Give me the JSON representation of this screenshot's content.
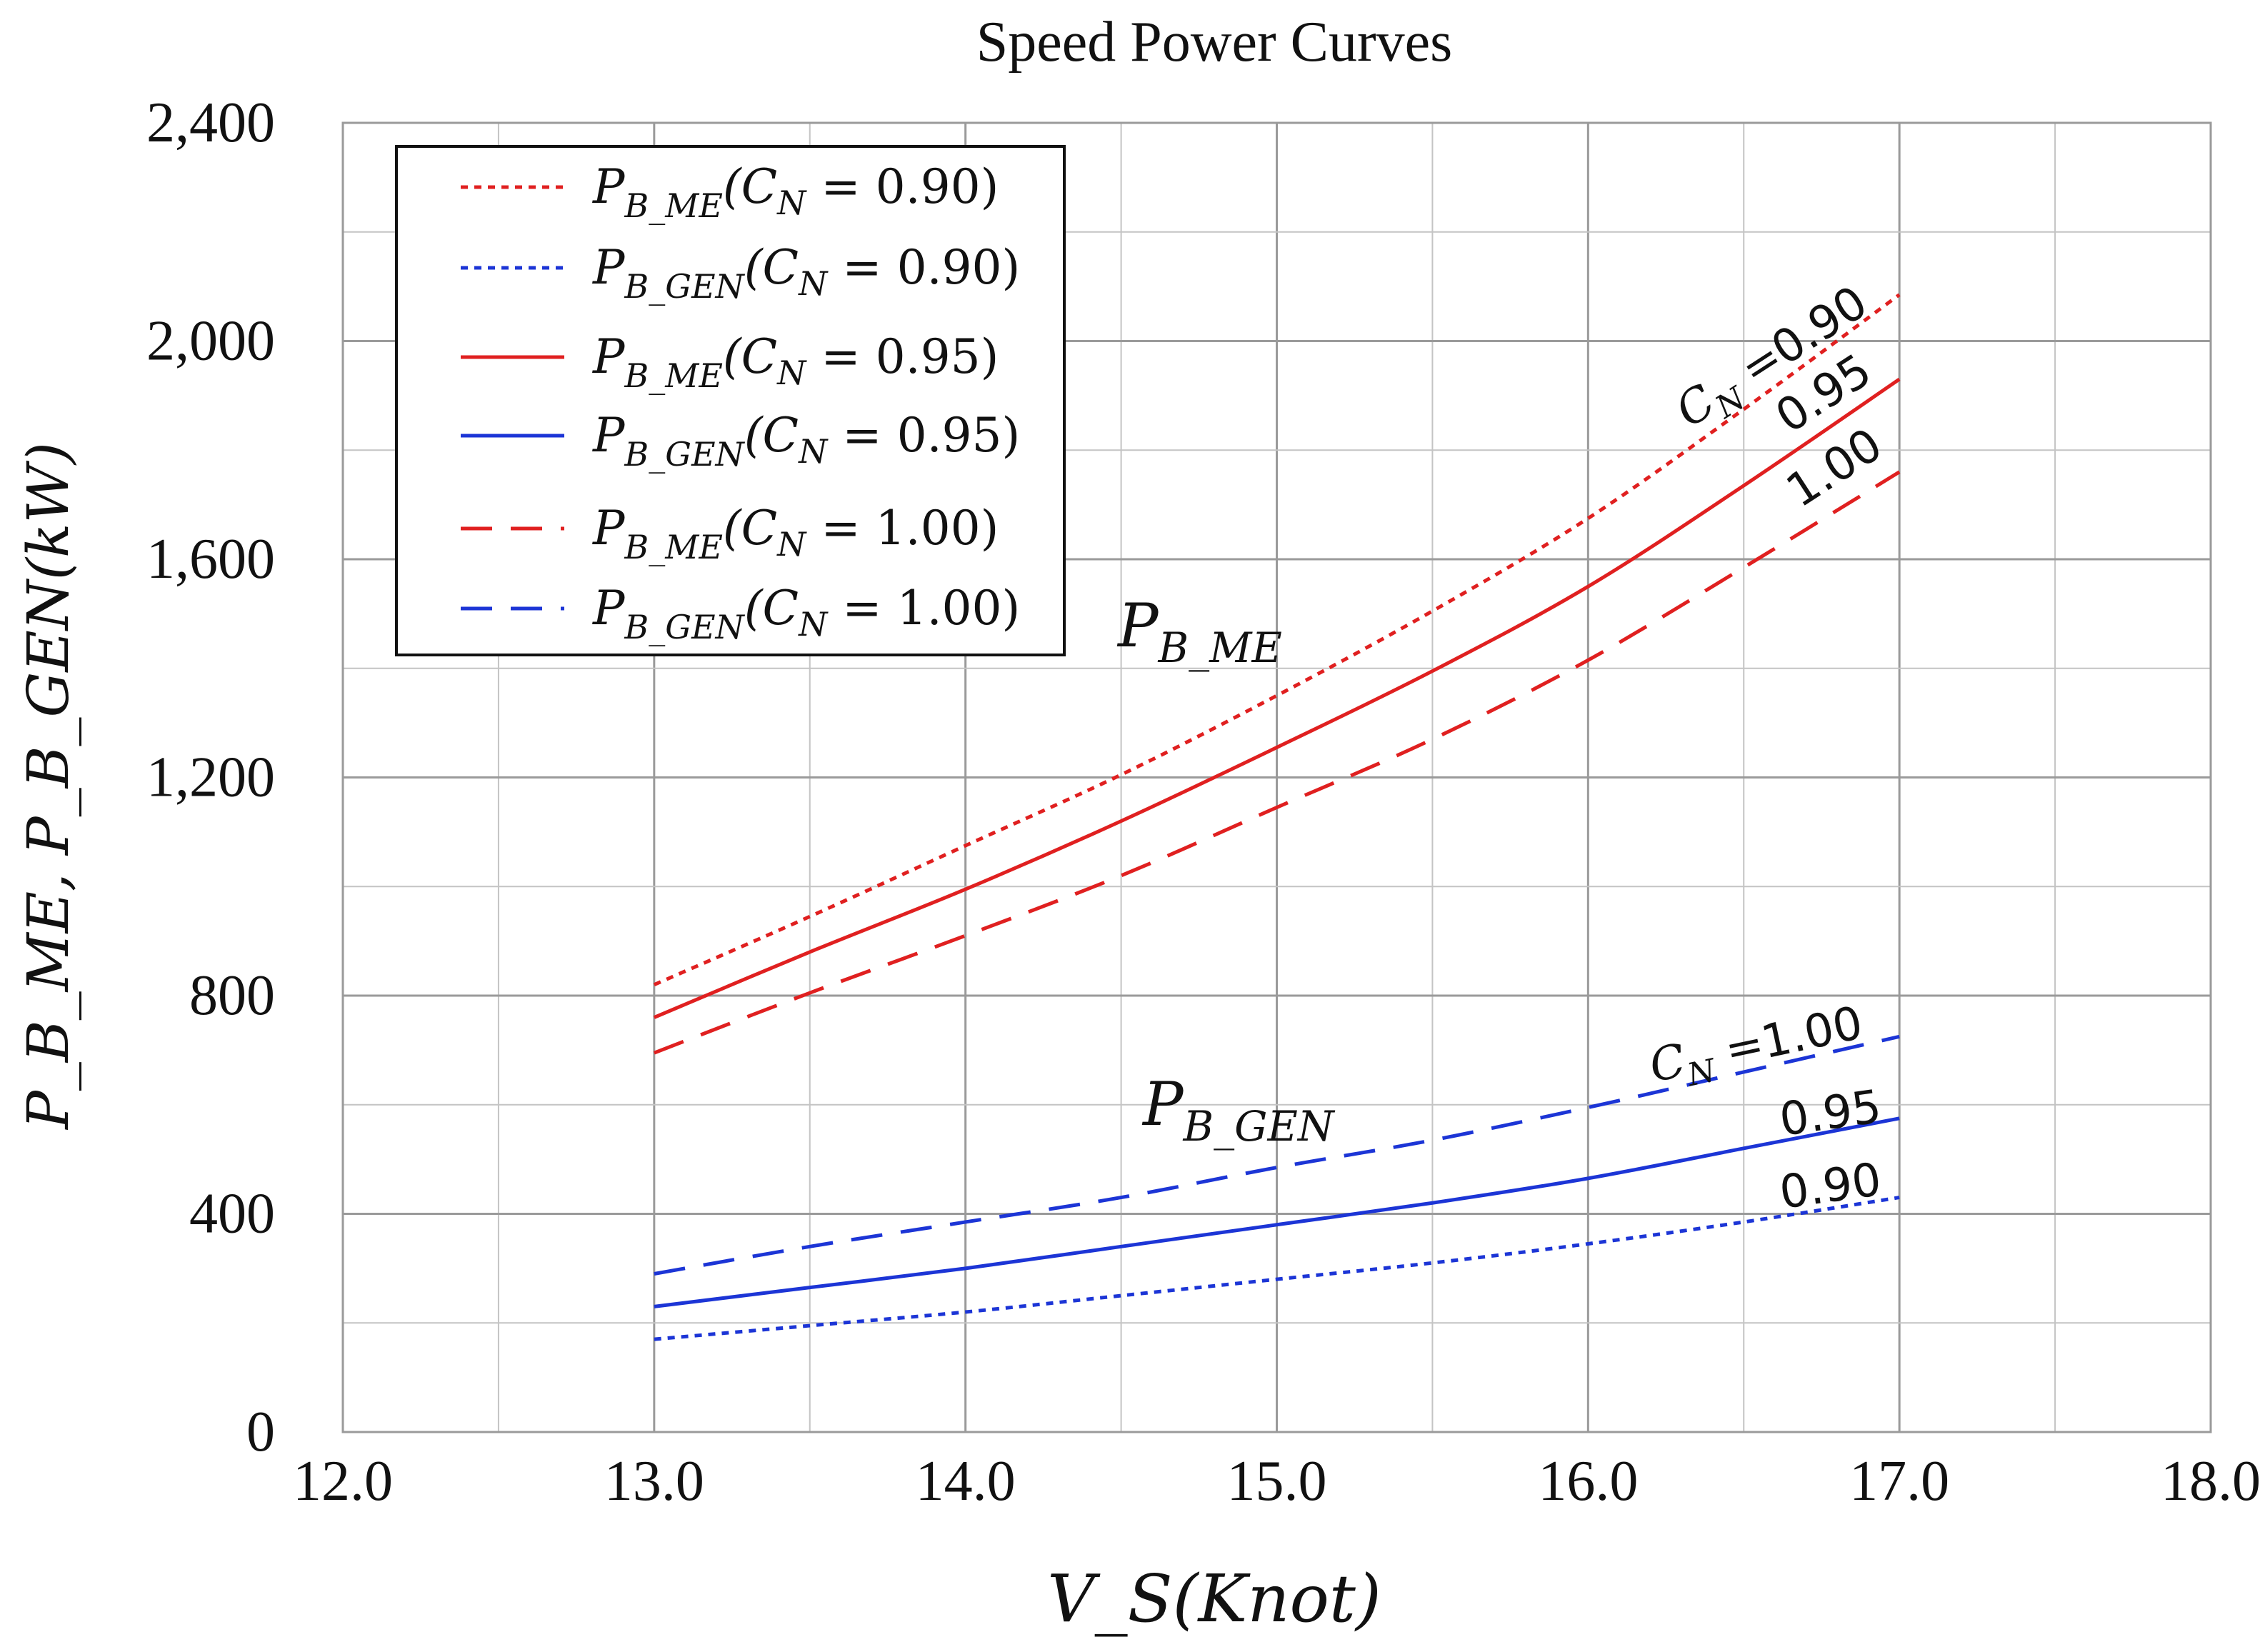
{
  "chart_data": {
    "type": "line",
    "title": "Speed Power Curves",
    "xlabel": "V_S(Knot)",
    "ylabel": "P_B_ME, P_B_GEN(kW)",
    "xlim": [
      12.0,
      18.0
    ],
    "ylim": [
      0,
      2400
    ],
    "xticks": [
      12.0,
      13.0,
      14.0,
      15.0,
      16.0,
      17.0,
      18.0
    ],
    "xtick_labels": [
      "12.0",
      "13.0",
      "14.0",
      "15.0",
      "16.0",
      "17.0",
      "18.0"
    ],
    "yticks": [
      0,
      400,
      800,
      1200,
      1600,
      2000,
      2400
    ],
    "ytick_labels": [
      "0",
      "400",
      "800",
      "1,200",
      "1,600",
      "2,000",
      "2,400"
    ],
    "grid": true,
    "minor_grid": {
      "x_step": 0.5,
      "y_step": 200
    },
    "legend_position": "top-left",
    "x": [
      13.0,
      13.5,
      14.0,
      14.5,
      15.0,
      15.5,
      16.0,
      16.5,
      17.0
    ],
    "series": [
      {
        "name": "P_B_ME(C_N = 0.90)",
        "color": "#e02020",
        "style": "dotted",
        "values": [
          820,
          945,
          1075,
          1205,
          1350,
          1505,
          1675,
          1875,
          2085
        ]
      },
      {
        "name": "P_B_GEN(C_N = 0.90)",
        "color": "#1c35d6",
        "style": "dotted",
        "values": [
          170,
          195,
          220,
          250,
          280,
          310,
          345,
          385,
          430
        ]
      },
      {
        "name": "P_B_ME(C_N = 0.95)",
        "color": "#e02020",
        "style": "solid",
        "values": [
          760,
          880,
          995,
          1120,
          1255,
          1395,
          1550,
          1735,
          1930
        ]
      },
      {
        "name": "P_B_GEN(C_N = 0.95)",
        "color": "#1c35d6",
        "style": "solid",
        "values": [
          230,
          265,
          300,
          340,
          380,
          420,
          465,
          520,
          575
        ]
      },
      {
        "name": "P_B_ME(C_N = 1.00)",
        "color": "#e02020",
        "style": "dashed",
        "values": [
          695,
          805,
          910,
          1020,
          1145,
          1270,
          1415,
          1585,
          1760
        ]
      },
      {
        "name": "P_B_GEN(C_N = 1.00)",
        "color": "#1c35d6",
        "style": "dashed",
        "values": [
          290,
          340,
          385,
          430,
          485,
          535,
          595,
          660,
          725
        ]
      }
    ],
    "legend_entries": [
      {
        "sub": "B_ME",
        "cn": "0.90"
      },
      {
        "sub": "B_GEN",
        "cn": "0.90"
      },
      {
        "sub": "B_ME",
        "cn": "0.95"
      },
      {
        "sub": "B_GEN",
        "cn": "0.95"
      },
      {
        "sub": "B_ME",
        "cn": "1.00"
      },
      {
        "sub": "B_GEN",
        "cn": "1.00"
      }
    ],
    "annotations": {
      "me_group_label": {
        "main": "P",
        "sub": "B_ME"
      },
      "gen_group_label": {
        "main": "P",
        "sub": "B_GEN"
      },
      "me_cn_090": "0.90",
      "me_cn_095": "0.95",
      "me_cn_100": "1.00",
      "gen_cn_100": "1.00",
      "gen_cn_095": "0.95",
      "gen_cn_090": "0.90"
    }
  }
}
